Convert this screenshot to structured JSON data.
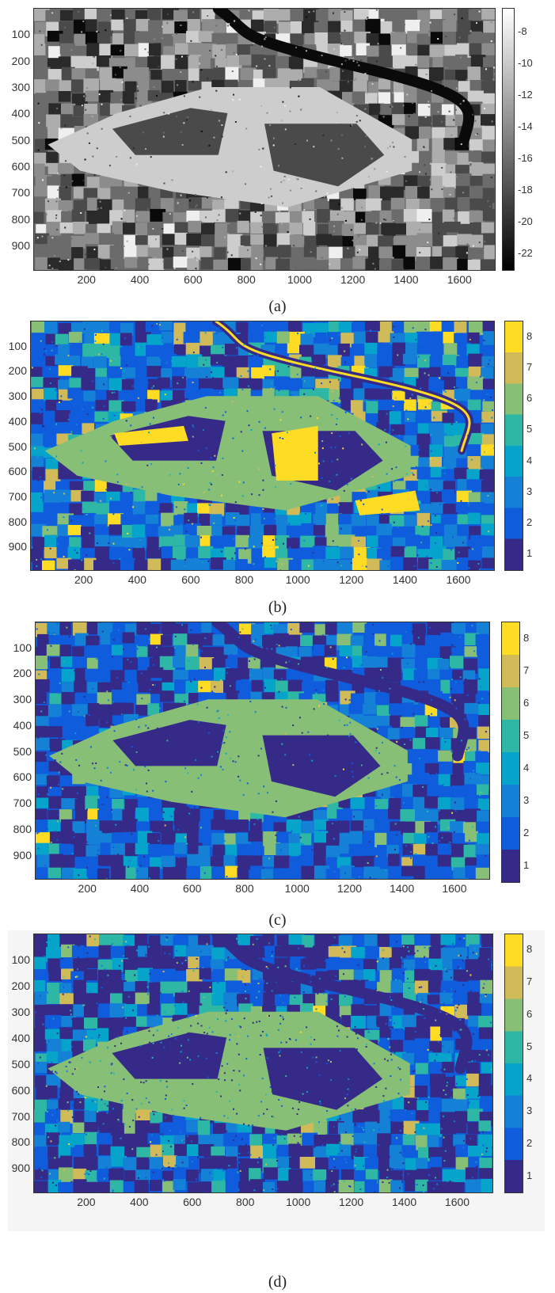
{
  "panels": [
    {
      "id": "a",
      "caption": "(a)",
      "colormap": "gray",
      "x_ticks": [
        "200",
        "400",
        "600",
        "800",
        "1000",
        "1200",
        "1400",
        "1600"
      ],
      "y_ticks": [
        "100",
        "200",
        "300",
        "400",
        "500",
        "600",
        "700",
        "800",
        "900"
      ],
      "colorbar_ticks": [
        "-8",
        "-10",
        "-12",
        "-14",
        "-16",
        "-18",
        "-20",
        "-22"
      ]
    },
    {
      "id": "b",
      "caption": "(b)",
      "colormap": "parula-8",
      "x_ticks": [
        "200",
        "400",
        "600",
        "800",
        "1000",
        "1200",
        "1400",
        "1600"
      ],
      "y_ticks": [
        "100",
        "200",
        "300",
        "400",
        "500",
        "600",
        "700",
        "800",
        "900"
      ],
      "colorbar_ticks": [
        "8",
        "7",
        "6",
        "5",
        "4",
        "3",
        "2",
        "1"
      ]
    },
    {
      "id": "c",
      "caption": "(c)",
      "colormap": "parula-8",
      "x_ticks": [
        "200",
        "400",
        "600",
        "800",
        "1000",
        "1200",
        "1400",
        "1600"
      ],
      "y_ticks": [
        "100",
        "200",
        "300",
        "400",
        "500",
        "600",
        "700",
        "800",
        "900"
      ],
      "colorbar_ticks": [
        "8",
        "7",
        "6",
        "5",
        "4",
        "3",
        "2",
        "1"
      ]
    },
    {
      "id": "d",
      "caption": "(d)",
      "colormap": "parula-8",
      "x_ticks": [
        "200",
        "400",
        "600",
        "800",
        "1000",
        "1200",
        "1400",
        "1600"
      ],
      "y_ticks": [
        "100",
        "200",
        "300",
        "400",
        "500",
        "600",
        "700",
        "800",
        "900"
      ],
      "colorbar_ticks": [
        "8",
        "7",
        "6",
        "5",
        "4",
        "3",
        "2",
        "1"
      ]
    }
  ],
  "palettes": {
    "gray": [
      "#0a0a0a",
      "#2a2a2a",
      "#4a4a4a",
      "#6b6b6b",
      "#8c8c8c",
      "#adadad",
      "#cdcdcd",
      "#efefef"
    ],
    "parula-8": [
      "#352a87",
      "#0f5cdd",
      "#1481d6",
      "#06a4ca",
      "#2eb7a4",
      "#87bf77",
      "#d1bb59",
      "#fedc24"
    ]
  }
}
